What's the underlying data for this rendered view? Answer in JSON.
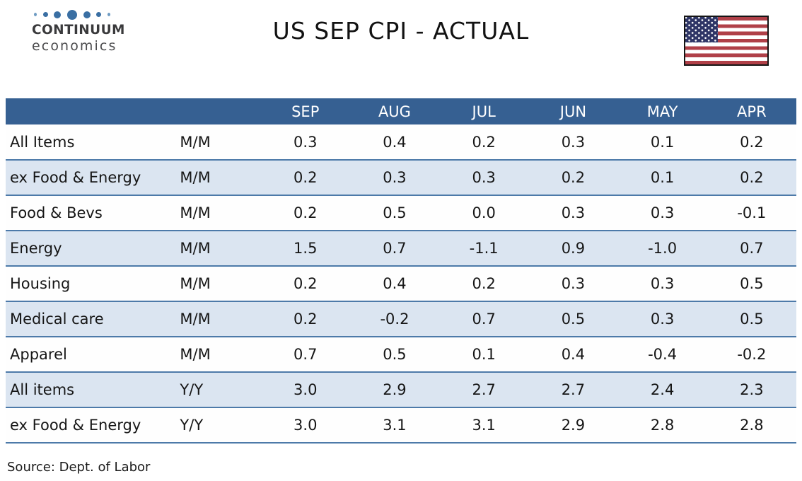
{
  "header": {
    "logo": {
      "name": "CONTINUUM",
      "tagline": "economics"
    },
    "title": "US SEP CPI - ACTUAL"
  },
  "chart_data": {
    "type": "table",
    "title": "US SEP CPI - ACTUAL",
    "columns": [
      "SEP",
      "AUG",
      "JUL",
      "JUN",
      "MAY",
      "APR"
    ],
    "rows": [
      {
        "label": "All Items",
        "basis": "M/M",
        "values": [
          0.3,
          0.4,
          0.2,
          0.3,
          0.1,
          0.2
        ]
      },
      {
        "label": "ex Food & Energy",
        "basis": "M/M",
        "values": [
          0.2,
          0.3,
          0.3,
          0.2,
          0.1,
          0.2
        ]
      },
      {
        "label": "Food & Bevs",
        "basis": "M/M",
        "values": [
          0.2,
          0.5,
          0.0,
          0.3,
          0.3,
          -0.1
        ]
      },
      {
        "label": "Energy",
        "basis": "M/M",
        "values": [
          1.5,
          0.7,
          -1.1,
          0.9,
          -1.0,
          0.7
        ]
      },
      {
        "label": "Housing",
        "basis": "M/M",
        "values": [
          0.2,
          0.4,
          0.2,
          0.3,
          0.3,
          0.5
        ]
      },
      {
        "label": "Medical care",
        "basis": "M/M",
        "values": [
          0.2,
          -0.2,
          0.7,
          0.5,
          0.3,
          0.5
        ]
      },
      {
        "label": "Apparel",
        "basis": "M/M",
        "values": [
          0.7,
          0.5,
          0.1,
          0.4,
          -0.4,
          -0.2
        ]
      },
      {
        "label": "All items",
        "basis": "Y/Y",
        "values": [
          3.0,
          2.9,
          2.7,
          2.7,
          2.4,
          2.3
        ]
      },
      {
        "label": "ex Food & Energy",
        "basis": "Y/Y",
        "values": [
          3.0,
          3.1,
          3.1,
          2.9,
          2.8,
          2.8
        ]
      }
    ],
    "source": "Source: Dept. of Labor"
  },
  "colors": {
    "table_header_bg": "#366092",
    "table_header_text": "#ffffff",
    "row_alt_bg": "#dbe5f1",
    "row_bg": "#fefefe",
    "grid_line": "#4d7aa9",
    "logo_dot_blue": "#3a6fa3",
    "flag_red": "#b04048",
    "flag_navy": "#2e3566"
  }
}
